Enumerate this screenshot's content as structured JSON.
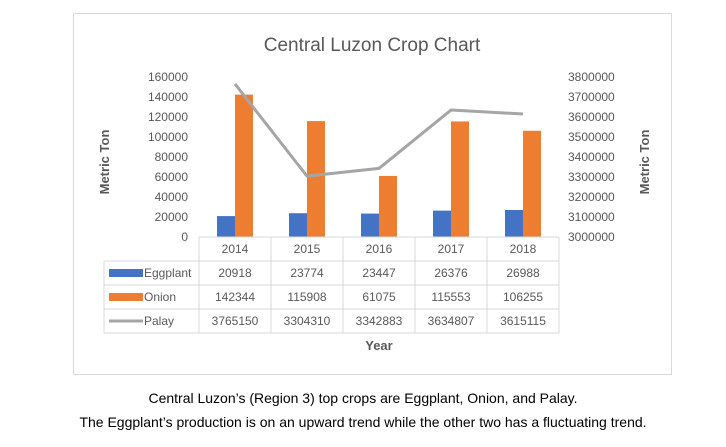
{
  "chart_data": {
    "type": "bar",
    "title": "Central Luzon Crop Chart",
    "xlabel": "Year",
    "ylabel": "Metric Ton",
    "y2label": "Metric Ton",
    "categories": [
      "2014",
      "2015",
      "2016",
      "2017",
      "2018"
    ],
    "ylim": [
      0,
      160000
    ],
    "yticks": [
      "160000",
      "140000",
      "120000",
      "100000",
      "80000",
      "60000",
      "40000",
      "20000",
      "0"
    ],
    "y2lim": [
      3000000,
      3800000
    ],
    "y2ticks": [
      "3800000",
      "3700000",
      "3600000",
      "3500000",
      "3400000",
      "3300000",
      "3200000",
      "3100000",
      "3000000"
    ],
    "series": [
      {
        "name": "Eggplant",
        "type": "bar",
        "axis": "left",
        "color": "#4472c4",
        "values": [
          20918,
          23774,
          23447,
          26376,
          26988
        ]
      },
      {
        "name": "Onion",
        "type": "bar",
        "axis": "left",
        "color": "#ed7d31",
        "values": [
          142344,
          115908,
          61075,
          115553,
          106255
        ]
      },
      {
        "name": "Palay",
        "type": "line",
        "axis": "right",
        "color": "#a5a5a5",
        "values": [
          3765150,
          3304310,
          3342883,
          3634807,
          3615115
        ]
      }
    ],
    "data_table": true,
    "grid": false
  },
  "captions": {
    "line1": "Central Luzon’s (Region 3) top crops are Eggplant, Onion, and Palay.",
    "line2": "The Eggplant’s production is on an upward trend while the other two has a fluctuating trend."
  }
}
